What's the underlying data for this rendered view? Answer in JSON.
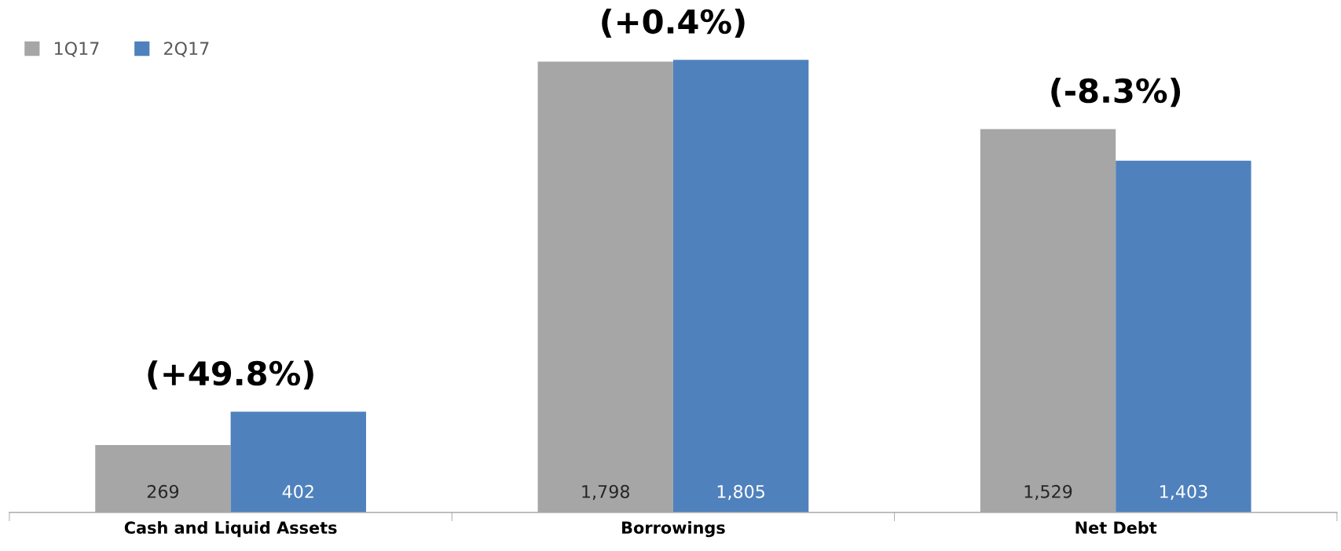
{
  "chart_data": {
    "type": "bar",
    "categories": [
      "Cash and Liquid Assets",
      "Borrowings",
      "Net Debt"
    ],
    "series": [
      {
        "name": "1Q17",
        "color": "#a6a6a6",
        "values": [
          269,
          1798,
          1529
        ],
        "value_labels": [
          "269",
          "1,798",
          "1,529"
        ]
      },
      {
        "name": "2Q17",
        "color": "#4f81bd",
        "values": [
          402,
          1805,
          1403
        ],
        "value_labels": [
          "402",
          "1,805",
          "1,403"
        ]
      }
    ],
    "legend": "top left",
    "grid": false,
    "annotations": [
      {
        "text": "(+49.8%)",
        "x": "Cash and Liquid Assets",
        "y": 402
      },
      {
        "text": "(+0.4%)",
        "x": "Borrowings",
        "y": 1805
      },
      {
        "text": "(-8.3%)",
        "x": "Net Debt",
        "y": 1529
      }
    ]
  }
}
